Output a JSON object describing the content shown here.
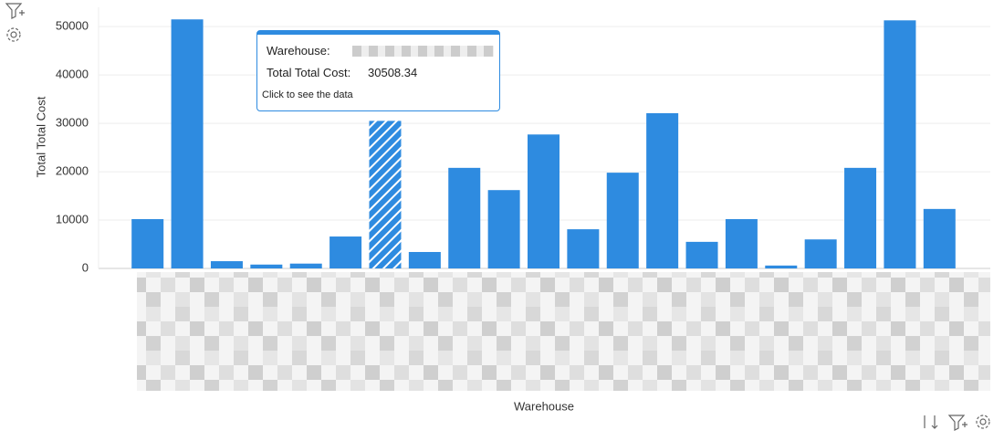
{
  "chart_data": {
    "type": "bar",
    "x_label": "Warehouse",
    "y_label": "Total Total Cost",
    "categories": [
      null,
      null,
      null,
      null,
      null,
      null,
      null,
      null,
      null,
      null,
      null,
      null,
      null,
      null,
      null,
      null,
      null,
      null,
      null,
      null,
      null
    ],
    "values": [
      10200,
      51500,
      1500,
      800,
      1000,
      6600,
      30508.34,
      3400,
      20800,
      16200,
      27700,
      8100,
      19800,
      32100,
      5500,
      10200,
      600,
      6000,
      20800,
      51300,
      12300
    ],
    "color": "#2e8be0",
    "ylim": [
      0,
      54000
    ],
    "yticks": [
      0,
      10000,
      20000,
      30000,
      40000,
      50000
    ],
    "grid": true,
    "tooltip": {
      "warehouse_label": "Warehouse:",
      "cost_label": "Total Total Cost:",
      "cost": 30508.34,
      "note": "Click to see the data"
    }
  }
}
